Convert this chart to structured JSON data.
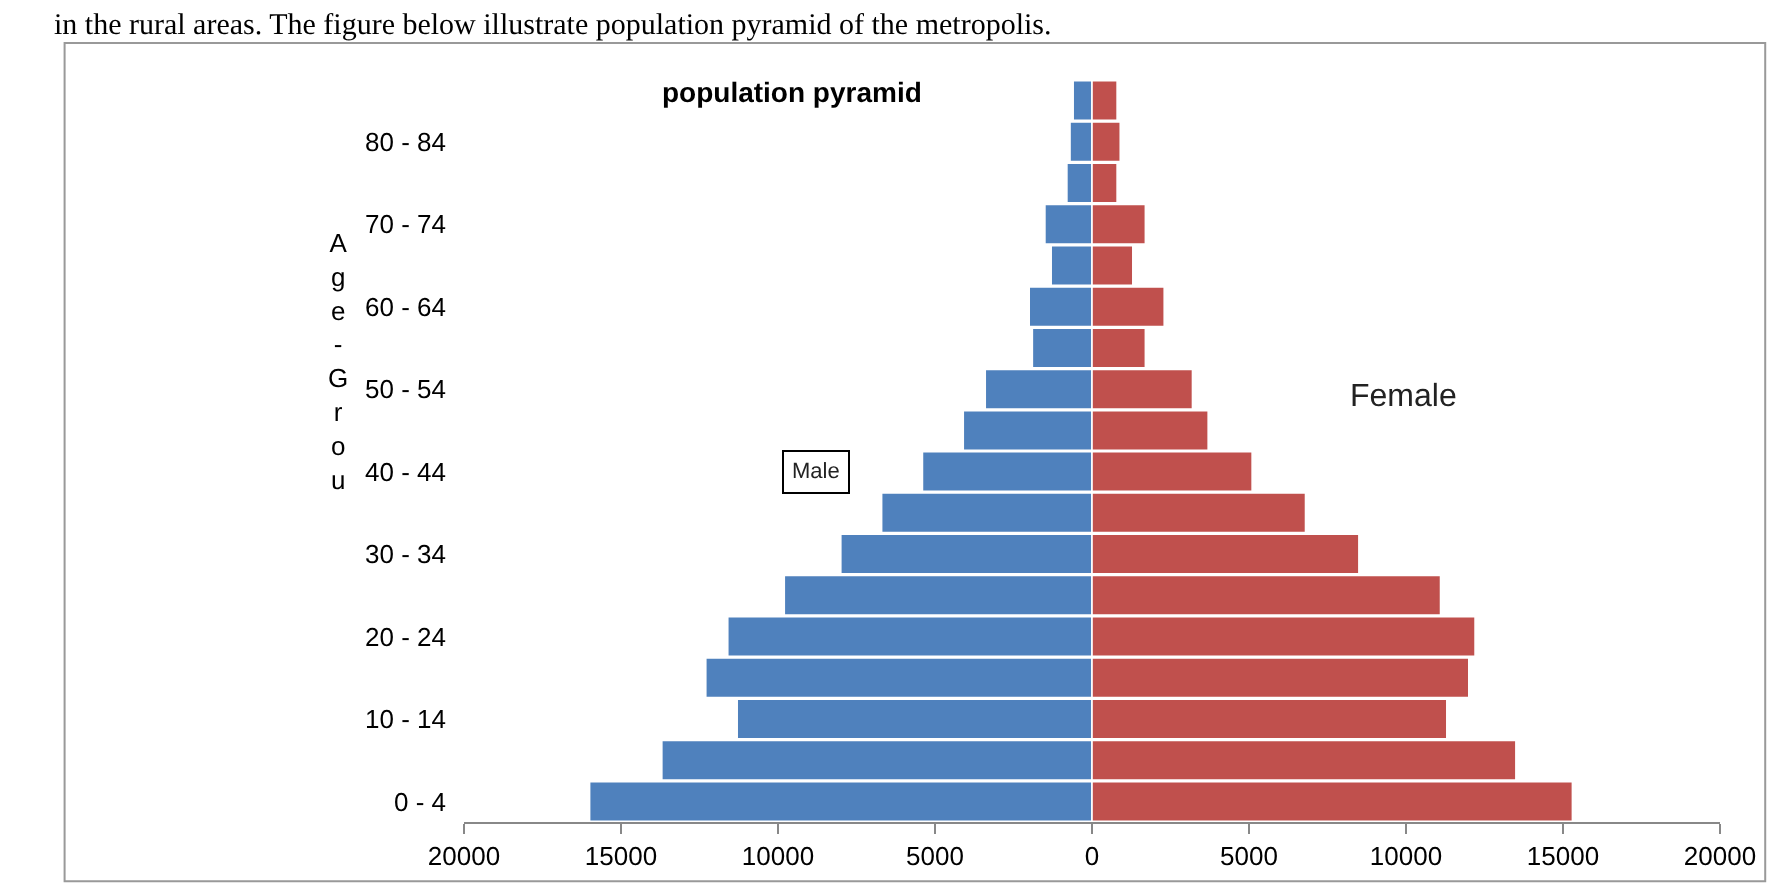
{
  "chart_data": {
    "type": "bar",
    "orientation": "horizontal",
    "title": "population pyramid",
    "ylabel": "Age-Grou",
    "annotations": [
      "in the rural areas. The figure below illustrate population pyramid of the metropolis."
    ],
    "categories": [
      null,
      "80 - 84",
      null,
      "70 - 74",
      null,
      "60 - 64",
      null,
      "50 - 54",
      null,
      "40 - 44",
      null,
      "30 - 34",
      null,
      "20 - 24",
      null,
      "10 - 14",
      null,
      "0 - 4"
    ],
    "series": [
      {
        "name": "Male",
        "color": "#4f81bd",
        "values": [
          -600,
          -700,
          -800,
          -1500,
          -1300,
          -2000,
          -1900,
          -3400,
          -4100,
          -5400,
          -6700,
          -8000,
          -9800,
          -11600,
          -12300,
          -11300,
          -13700,
          -16000
        ]
      },
      {
        "name": "Female",
        "color": "#c0504d",
        "values": [
          800,
          900,
          800,
          1700,
          1300,
          2300,
          1700,
          3200,
          3700,
          5100,
          6800,
          8500,
          11100,
          12200,
          12000,
          11300,
          13500,
          15300
        ]
      }
    ],
    "xlim": [
      -20000,
      20000
    ],
    "xticks": [
      {
        "value": -20000,
        "label": "20000"
      },
      {
        "value": -15000,
        "label": "15000"
      },
      {
        "value": -10000,
        "label": "10000"
      },
      {
        "value": -5000,
        "label": "5000"
      },
      0,
      5000,
      10000,
      15000,
      20000
    ],
    "stacked": true,
    "legend": false
  }
}
